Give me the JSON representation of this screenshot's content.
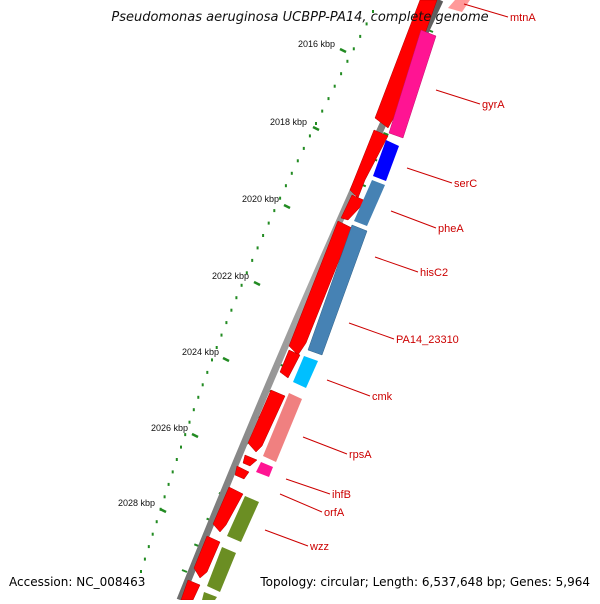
{
  "title": "Pseudomonas aeruginosa UCBPP-PA14, complete genome",
  "accession_text": "Accession: NC_008463",
  "summary_text": "Topology: circular; Length: 6,537,648 bp; Genes: 5,964",
  "colors": {
    "backbone": "#808080",
    "forward_gene": "#ff0000",
    "ticks": "#228b22",
    "label": "#cc0000"
  },
  "tick_labels": [
    "2016 kbp",
    "2018 kbp",
    "2020 kbp",
    "2022 kbp",
    "2024 kbp",
    "2026 kbp",
    "2028 kbp"
  ],
  "genes": [
    {
      "name": "mtnA",
      "color": "#ff9999"
    },
    {
      "name": "gyrA",
      "color": "#ff1493"
    },
    {
      "name": "serC",
      "color": "#0000ff"
    },
    {
      "name": "pheA",
      "color": "#4682b4"
    },
    {
      "name": "hisC2",
      "color": "#4682b4"
    },
    {
      "name": "PA14_23310",
      "color": "#4682b4"
    },
    {
      "name": "cmk",
      "color": "#00bfff"
    },
    {
      "name": "rpsA",
      "color": "#f08080"
    },
    {
      "name": "ihfB",
      "color": "#ff1493"
    },
    {
      "name": "orfA",
      "color": "#ff0000"
    },
    {
      "name": "wzz",
      "color": "#6b8e23"
    }
  ]
}
